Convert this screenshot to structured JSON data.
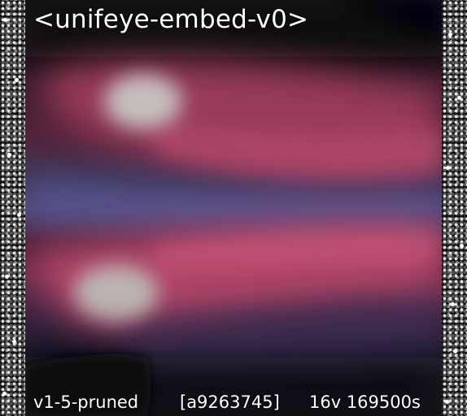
{
  "image": {
    "title": "<unifeye-embed-v0>",
    "footer": {
      "model": "v1-5-pruned",
      "hash": "[a9263745]",
      "meta": "16v 169500s"
    }
  },
  "colors": {
    "background": "#000000",
    "text": "#ffffff",
    "pink_band": "#b84a6e",
    "purple_band": "#5a5590",
    "white_blob": "#c8c8c8"
  }
}
